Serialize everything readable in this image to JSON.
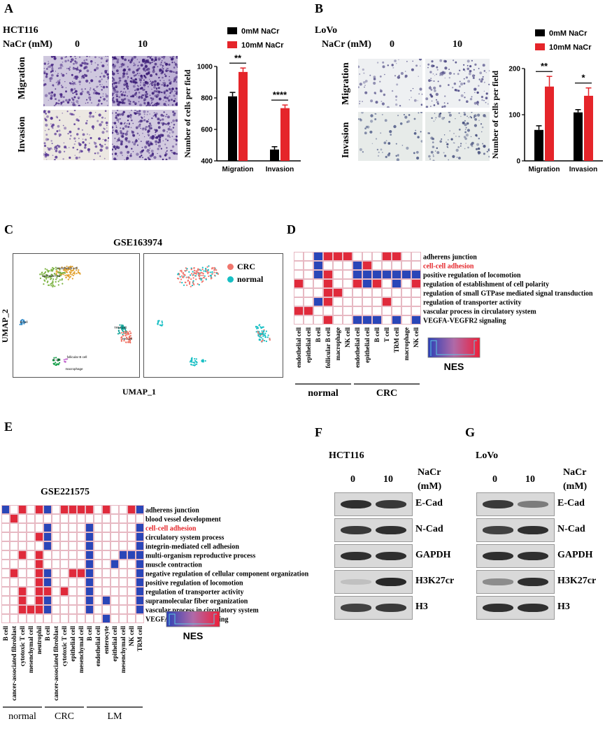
{
  "panels": {
    "A": "A",
    "B": "B",
    "C": "C",
    "D": "D",
    "E": "E",
    "F": "F",
    "G": "G"
  },
  "panelA": {
    "cell_line": "HCT116",
    "nacr_label": "NaCr (mM)",
    "dose0": "0",
    "dose10": "10",
    "row1": "Migration",
    "row2": "Invasion",
    "chart_data": {
      "type": "bar",
      "categories": [
        "Migration",
        "Invasion"
      ],
      "series": [
        {
          "name": "0mM NaCr",
          "values": [
            810,
            472
          ],
          "errors": [
            25,
            18
          ],
          "color": "#000000"
        },
        {
          "name": "10mM NaCr",
          "values": [
            965,
            735
          ],
          "errors": [
            25,
            20
          ],
          "color": "#e5252a"
        }
      ],
      "ylabel": "Number of cells per field",
      "ylim": [
        400,
        1000
      ],
      "yticks": [
        "400",
        "600",
        "800",
        "1000"
      ],
      "sig": [
        "**",
        "****"
      ]
    }
  },
  "panelB": {
    "cell_line": "LoVo",
    "nacr_label": "NaCr (mM)",
    "dose0": "0",
    "dose10": "10",
    "row1": "Migration",
    "row2": "Invasion",
    "chart_data": {
      "type": "bar",
      "categories": [
        "Migration",
        "Invasion"
      ],
      "series": [
        {
          "name": "0mM NaCr",
          "values": [
            67,
            105
          ],
          "errors": [
            9,
            6
          ],
          "color": "#000000"
        },
        {
          "name": "10mM NaCr",
          "values": [
            161,
            141
          ],
          "errors": [
            22,
            17
          ],
          "color": "#e5252a"
        }
      ],
      "ylabel": "Number of cells per field",
      "ylim": [
        0,
        200
      ],
      "yticks": [
        "0",
        "100",
        "200"
      ],
      "sig": [
        "**",
        "*"
      ]
    }
  },
  "panelC": {
    "title": "GSE163974",
    "xlabel": "UMAP_1",
    "ylabel": "UMAP_2",
    "legend": [
      {
        "label": "CRC",
        "color": "#f0766d"
      },
      {
        "label": "normal",
        "color": "#17bfc4"
      }
    ],
    "clusters": [
      "endothelial cell",
      "epithelial cell",
      "B cell",
      "TRM cell",
      "NK cell",
      "T cell",
      "follicular B cell",
      "macrophage"
    ]
  },
  "panelD": {
    "pathways": [
      "adherens junction",
      "cell-cell adhesion",
      "positive regulation of locomotion",
      "regulation of establishment of cell polarity",
      "regulation of small GTPase mediated signal transduction",
      "regulation of transporter activity",
      "vascular process in circulatory system",
      "VEGFA-VEGFR2 signaling"
    ],
    "highlight_index": 1,
    "columns": [
      "endothelial cell",
      "epithelial cell",
      "B cell",
      "follicular B cell",
      "macrophage",
      "NK cell",
      "endothelial cell",
      "epithelial cell",
      "B cell",
      "T cell",
      "TRM cell",
      "macrophage",
      "NK cell"
    ],
    "groups": [
      {
        "label": "normal",
        "span": 6
      },
      {
        "label": "CRC",
        "span": 7
      }
    ],
    "legend_title": "NES",
    "grid": [
      [
        0,
        0,
        1,
        2,
        2,
        2,
        0,
        0,
        0,
        2,
        2,
        0,
        0
      ],
      [
        0,
        0,
        1,
        0,
        0,
        0,
        1,
        2,
        0,
        0,
        0,
        0,
        0
      ],
      [
        0,
        0,
        1,
        2,
        0,
        0,
        1,
        1,
        1,
        1,
        1,
        1,
        1
      ],
      [
        2,
        0,
        0,
        2,
        0,
        0,
        2,
        1,
        2,
        0,
        1,
        0,
        2
      ],
      [
        0,
        0,
        0,
        2,
        2,
        0,
        0,
        0,
        0,
        0,
        0,
        0,
        0
      ],
      [
        0,
        0,
        1,
        2,
        0,
        0,
        0,
        0,
        0,
        2,
        0,
        0,
        0
      ],
      [
        2,
        2,
        0,
        0,
        0,
        0,
        0,
        0,
        0,
        0,
        0,
        0,
        0
      ],
      [
        0,
        0,
        0,
        2,
        0,
        0,
        1,
        1,
        1,
        0,
        1,
        0,
        1
      ]
    ]
  },
  "panelE": {
    "title": "GSE221575",
    "pathways": [
      "adherens junction",
      "blood vessel development",
      "cell-cell adhesion",
      "circulatory system process",
      "integrin-mediated cell adhesion",
      "multi-organism reproductive process",
      "muscle contraction",
      "negative regulation of cellular component organization",
      "positive regulation of locomotion",
      "regulation of transporter activity",
      "supramolecular fiber organization",
      "vascular process in circulatory system",
      "VEGFA-VEGFR2 signaling"
    ],
    "highlight_index": 2,
    "columns": [
      "B cell",
      "cancer-associated fibroblast",
      "cytotoxic T cell",
      "mesenchymal cell",
      "neutrophil",
      "B cell",
      "cancer-associated fibroblast",
      "cytotoxic T cell",
      "epithelial cell",
      "mesenchymal cell",
      "B cell",
      "endothelial cell",
      "enterocyte",
      "epithelial cell",
      "mesenchymal cell",
      "NK cell",
      "TRM cell"
    ],
    "groups": [
      {
        "label": "normal",
        "span": 5
      },
      {
        "label": "CRC",
        "span": 5
      },
      {
        "label": "LM",
        "span": 7
      }
    ],
    "legend_title": "NES",
    "grid": [
      [
        1,
        0,
        2,
        0,
        2,
        1,
        0,
        2,
        2,
        2,
        2,
        0,
        2,
        0,
        0,
        2,
        1
      ],
      [
        0,
        2,
        0,
        0,
        0,
        0,
        0,
        0,
        0,
        0,
        0,
        0,
        0,
        0,
        0,
        0,
        0
      ],
      [
        0,
        0,
        0,
        0,
        0,
        1,
        0,
        0,
        0,
        0,
        1,
        0,
        0,
        0,
        0,
        0,
        1
      ],
      [
        0,
        0,
        0,
        0,
        2,
        1,
        0,
        0,
        0,
        0,
        1,
        0,
        0,
        0,
        0,
        0,
        1
      ],
      [
        0,
        0,
        0,
        0,
        0,
        1,
        0,
        0,
        0,
        0,
        1,
        0,
        0,
        0,
        0,
        0,
        1
      ],
      [
        0,
        0,
        2,
        0,
        2,
        0,
        0,
        0,
        0,
        0,
        1,
        0,
        0,
        0,
        1,
        1,
        1
      ],
      [
        0,
        0,
        0,
        0,
        2,
        0,
        0,
        0,
        0,
        0,
        1,
        0,
        0,
        1,
        0,
        0,
        1
      ],
      [
        0,
        2,
        0,
        0,
        2,
        1,
        0,
        0,
        2,
        2,
        1,
        0,
        0,
        0,
        0,
        0,
        1
      ],
      [
        0,
        0,
        0,
        0,
        2,
        1,
        0,
        0,
        0,
        0,
        1,
        0,
        0,
        0,
        0,
        0,
        1
      ],
      [
        0,
        0,
        2,
        0,
        2,
        2,
        0,
        2,
        0,
        0,
        1,
        0,
        0,
        0,
        0,
        0,
        1
      ],
      [
        0,
        0,
        2,
        0,
        2,
        1,
        0,
        0,
        0,
        0,
        1,
        0,
        1,
        0,
        0,
        0,
        1
      ],
      [
        0,
        0,
        2,
        2,
        2,
        1,
        0,
        0,
        0,
        0,
        1,
        0,
        0,
        0,
        0,
        0,
        1
      ],
      [
        0,
        0,
        0,
        0,
        0,
        0,
        0,
        0,
        0,
        0,
        0,
        0,
        1,
        0,
        0,
        0,
        0
      ]
    ]
  },
  "panelF": {
    "cell_line": "HCT116",
    "nacr_label1": "NaCr",
    "nacr_label2": "(mM)",
    "dose0": "0",
    "dose10": "10",
    "bands": [
      "E-Cad",
      "N-Cad",
      "GAPDH",
      "H3K27cr",
      "H3"
    ],
    "intensity": [
      [
        0.9,
        0.85
      ],
      [
        0.85,
        0.9
      ],
      [
        0.9,
        0.9
      ],
      [
        0.05,
        0.95
      ],
      [
        0.8,
        0.85
      ]
    ]
  },
  "panelG": {
    "cell_line": "LoVo",
    "nacr_label1": "NaCr",
    "nacr_label2": "(mM)",
    "dose0": "0",
    "dose10": "10",
    "bands": [
      "E-Cad",
      "N-Cad",
      "GAPDH",
      "H3K27cr",
      "H3"
    ],
    "intensity": [
      [
        0.85,
        0.45
      ],
      [
        0.8,
        0.9
      ],
      [
        0.9,
        0.9
      ],
      [
        0.35,
        0.9
      ],
      [
        0.9,
        0.9
      ]
    ]
  },
  "colors": {
    "red": "#e5252a",
    "blue": "#2a46b8",
    "pink": "#e7b9c3",
    "heat_red": "#e02a3b"
  }
}
